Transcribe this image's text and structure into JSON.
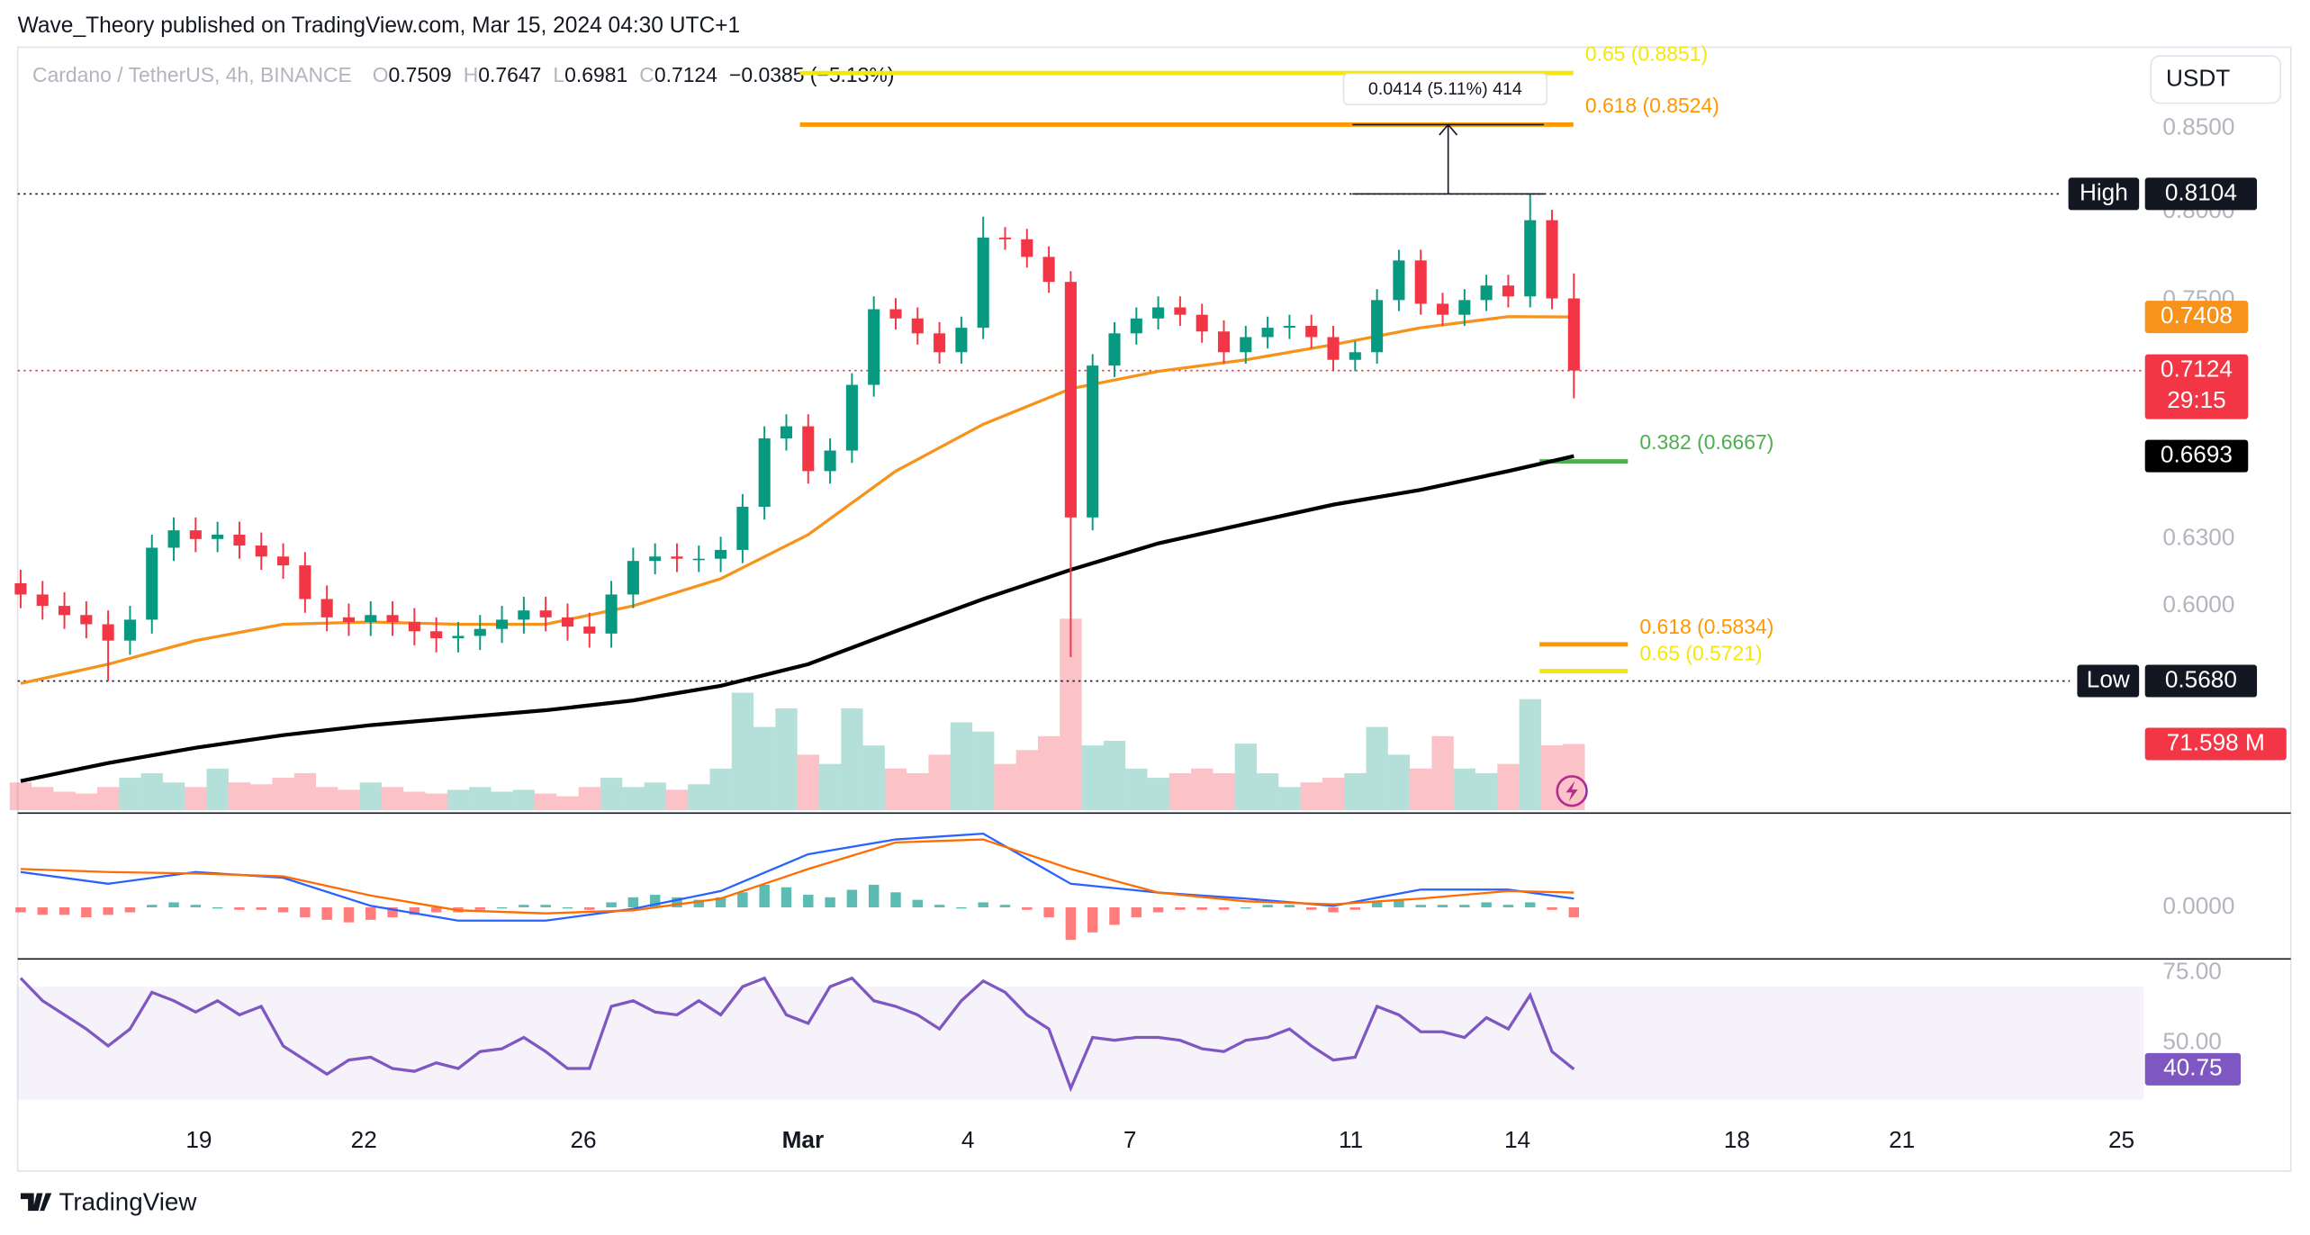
{
  "header": "Wave_Theory published on TradingView.com, Mar 15, 2024 04:30 UTC+1",
  "footer": "TradingView",
  "chart_data": {
    "type": "candlestick",
    "symbol": "Cardano / TetherUS, 4h, BINANCE",
    "quote": "USDT",
    "legend_ohlc": [
      {
        "label": "O",
        "value": 0.7509
      },
      {
        "label": "H",
        "value": 0.7647
      },
      {
        "label": "L",
        "value": 0.6981
      },
      {
        "label": "C",
        "value": 0.7124
      }
    ],
    "change": "−0.0385 (−5.13%)",
    "up_color": "#089981",
    "down_color": "#f23645",
    "open": [
      0.61,
      0.605,
      0.6,
      0.596,
      0.592,
      0.585,
      0.594,
      0.626,
      0.634,
      0.63,
      0.632,
      0.627,
      0.622,
      0.618,
      0.603,
      0.595,
      0.593,
      0.596,
      0.593,
      0.589,
      0.586,
      0.587,
      0.59,
      0.594,
      0.598,
      0.595,
      0.591,
      0.588,
      0.605,
      0.62,
      0.622,
      0.621,
      0.621,
      0.625,
      0.645,
      0.678,
      0.684,
      0.662,
      0.672,
      0.705,
      0.745,
      0.74,
      0.732,
      0.722,
      0.735,
      0.785,
      0.784,
      0.774,
      0.76,
      0.64,
      0.715,
      0.732,
      0.74,
      0.746,
      0.742,
      0.733,
      0.722,
      0.73,
      0.735,
      0.736,
      0.73,
      0.718,
      0.722,
      0.75,
      0.772,
      0.748,
      0.742,
      0.75,
      0.758,
      0.752,
      0.795,
      0.7509
    ],
    "high": [
      0.616,
      0.611,
      0.606,
      0.602,
      0.598,
      0.6,
      0.632,
      0.64,
      0.64,
      0.638,
      0.638,
      0.633,
      0.628,
      0.624,
      0.609,
      0.601,
      0.602,
      0.602,
      0.599,
      0.595,
      0.593,
      0.596,
      0.6,
      0.604,
      0.604,
      0.601,
      0.597,
      0.611,
      0.626,
      0.628,
      0.628,
      0.627,
      0.631,
      0.651,
      0.684,
      0.69,
      0.69,
      0.678,
      0.711,
      0.752,
      0.751,
      0.746,
      0.738,
      0.741,
      0.797,
      0.791,
      0.79,
      0.78,
      0.766,
      0.721,
      0.738,
      0.746,
      0.752,
      0.752,
      0.748,
      0.739,
      0.736,
      0.741,
      0.742,
      0.742,
      0.736,
      0.728,
      0.756,
      0.778,
      0.778,
      0.754,
      0.756,
      0.764,
      0.764,
      0.8104,
      0.801,
      0.7647
    ],
    "low": [
      0.599,
      0.594,
      0.59,
      0.586,
      0.568,
      0.579,
      0.588,
      0.62,
      0.624,
      0.624,
      0.621,
      0.616,
      0.612,
      0.597,
      0.589,
      0.587,
      0.587,
      0.587,
      0.583,
      0.58,
      0.58,
      0.581,
      0.584,
      0.588,
      0.589,
      0.585,
      0.582,
      0.582,
      0.599,
      0.614,
      0.615,
      0.615,
      0.615,
      0.619,
      0.639,
      0.672,
      0.656,
      0.656,
      0.666,
      0.699,
      0.734,
      0.726,
      0.716,
      0.716,
      0.729,
      0.778,
      0.768,
      0.754,
      0.578,
      0.634,
      0.709,
      0.726,
      0.734,
      0.736,
      0.727,
      0.716,
      0.716,
      0.724,
      0.729,
      0.724,
      0.712,
      0.712,
      0.716,
      0.744,
      0.742,
      0.736,
      0.736,
      0.744,
      0.746,
      0.746,
      0.745,
      0.6981
    ],
    "close": [
      0.605,
      0.6,
      0.596,
      0.592,
      0.585,
      0.594,
      0.626,
      0.634,
      0.63,
      0.632,
      0.627,
      0.622,
      0.618,
      0.603,
      0.595,
      0.593,
      0.596,
      0.593,
      0.589,
      0.586,
      0.587,
      0.59,
      0.594,
      0.598,
      0.595,
      0.591,
      0.588,
      0.605,
      0.62,
      0.622,
      0.621,
      0.621,
      0.625,
      0.645,
      0.678,
      0.684,
      0.662,
      0.672,
      0.705,
      0.745,
      0.74,
      0.732,
      0.722,
      0.735,
      0.785,
      0.784,
      0.774,
      0.76,
      0.64,
      0.715,
      0.732,
      0.74,
      0.746,
      0.742,
      0.733,
      0.722,
      0.73,
      0.735,
      0.736,
      0.73,
      0.718,
      0.722,
      0.75,
      0.772,
      0.748,
      0.742,
      0.75,
      0.758,
      0.752,
      0.795,
      0.7509,
      0.7124
    ],
    "countdown": "29:15",
    "log_scale": true,
    "grid": false,
    "ylim": [
      0.5158,
      0.902
    ],
    "yticks": [
      {
        "value": 0.85,
        "label": "0.8500"
      },
      {
        "value": 0.8,
        "label": "0.8000"
      },
      {
        "value": 0.75,
        "label": "0.7500"
      },
      {
        "value": 0.63,
        "label": "0.6300"
      },
      {
        "value": 0.6,
        "label": "0.6000"
      }
    ],
    "xticks": [
      "19",
      "22",
      "26",
      "Mar",
      "4",
      "7",
      "11",
      "14",
      "18",
      "21",
      "25"
    ],
    "moving_averages": [
      {
        "color": "#f7931a",
        "x": [
          0,
          4,
          8,
          12,
          16,
          20,
          24,
          28,
          32,
          36,
          40,
          44,
          48,
          52,
          56,
          60,
          64,
          68,
          71
        ],
        "values": [
          0.567,
          0.575,
          0.585,
          0.592,
          0.593,
          0.592,
          0.592,
          0.6,
          0.612,
          0.632,
          0.662,
          0.685,
          0.703,
          0.712,
          0.718,
          0.726,
          0.735,
          0.741,
          0.7408
        ]
      },
      {
        "color": "#000000",
        "x": [
          0,
          4,
          8,
          12,
          16,
          20,
          24,
          28,
          32,
          36,
          40,
          44,
          48,
          52,
          56,
          60,
          64,
          68,
          71
        ],
        "values": [
          0.528,
          0.535,
          0.541,
          0.546,
          0.55,
          0.553,
          0.556,
          0.56,
          0.566,
          0.575,
          0.589,
          0.603,
          0.616,
          0.628,
          0.637,
          0.646,
          0.653,
          0.662,
          0.6693
        ]
      }
    ],
    "high_line": {
      "label": "High",
      "value": 0.8104
    },
    "low_line": {
      "label": "Low",
      "value": 0.568,
      "value_label": "0.5680"
    },
    "fib_upper": [
      {
        "label": "0.65 (0.8851)",
        "price": 0.8851,
        "color": "#f5e70a"
      },
      {
        "label": "0.618 (0.8524)",
        "price": 0.8524,
        "color": "#ff9800"
      }
    ],
    "fib_lower": [
      {
        "label": "0.382 (0.6667)",
        "price": 0.6667,
        "color": "#4caf50"
      },
      {
        "label": "0.618 (0.5834)",
        "price": 0.5834,
        "color": "#ff9800"
      },
      {
        "label": "0.65 (0.5721)",
        "price": 0.5721,
        "color": "#f5e70a"
      }
    ],
    "measure": "0.0414 (5.11%) 414",
    "volume": {
      "values": [
        30,
        25,
        20,
        18,
        25,
        35,
        40,
        30,
        25,
        45,
        30,
        28,
        35,
        40,
        25,
        22,
        30,
        25,
        20,
        18,
        22,
        25,
        20,
        22,
        18,
        15,
        25,
        35,
        25,
        30,
        22,
        28,
        45,
        127,
        90,
        110,
        60,
        50,
        110,
        70,
        45,
        40,
        60,
        95,
        85,
        50,
        65,
        80,
        207,
        70,
        75,
        45,
        35,
        40,
        45,
        40,
        72,
        40,
        25,
        30,
        35,
        40,
        90,
        60,
        45,
        80,
        45,
        40,
        50,
        120,
        70,
        71.598
      ],
      "value_label": "71.598 M"
    },
    "macd": {
      "x": [
        0,
        4,
        8,
        12,
        16,
        20,
        24,
        28,
        32,
        36,
        40,
        44,
        48,
        52,
        56,
        60,
        64,
        68,
        71
      ],
      "macd": [
        0.0141,
        0.0094,
        0.0141,
        0.0118,
        0.0006,
        -0.0053,
        -0.0053,
        -0.0006,
        0.0065,
        0.0212,
        0.0271,
        0.0294,
        0.0094,
        0.0059,
        0.0035,
        0.0006,
        0.0071,
        0.0071,
        0.0035
      ],
      "signal": [
        0.0153,
        0.0141,
        0.0135,
        0.0124,
        0.0047,
        -0.0012,
        -0.0024,
        -0.0012,
        0.0035,
        0.0153,
        0.0259,
        0.0271,
        0.0153,
        0.0059,
        0.0024,
        0.0012,
        0.0035,
        0.0065,
        0.0059
      ],
      "histogram": [
        -0.002,
        -0.003,
        -0.003,
        -0.004,
        -0.003,
        -0.002,
        0.001,
        0.002,
        0.001,
        0.0,
        -0.001,
        -0.001,
        -0.002,
        -0.004,
        -0.005,
        -0.006,
        -0.005,
        -0.004,
        -0.003,
        -0.002,
        -0.002,
        -0.001,
        0.0,
        0.001,
        0.001,
        0.0,
        -0.001,
        0.002,
        0.004,
        0.005,
        0.004,
        0.003,
        0.004,
        0.006,
        0.009,
        0.008,
        0.005,
        0.004,
        0.007,
        0.009,
        0.006,
        0.003,
        0.001,
        0.0,
        0.002,
        0.001,
        -0.001,
        -0.004,
        -0.013,
        -0.01,
        -0.007,
        -0.004,
        -0.002,
        -0.001,
        -0.001,
        -0.001,
        0.0,
        0.001,
        0.001,
        -0.001,
        -0.002,
        -0.001,
        0.002,
        0.003,
        0.001,
        0.001,
        0.001,
        0.002,
        0.001,
        0.002,
        -0.001,
        -0.004
      ],
      "macd_color": "#2962ff",
      "signal_color": "#ff6d00",
      "up_color": "#26a69a",
      "down_color": "#ff5252",
      "ylim": [
        -0.0206,
        0.0376
      ],
      "yticks": [
        {
          "value": 0,
          "label": "0.0000"
        }
      ]
    },
    "rsi": {
      "values": [
        73,
        65,
        60,
        55,
        49,
        55,
        68,
        65,
        61,
        65,
        60,
        63,
        49,
        44,
        39,
        44,
        45,
        41,
        40,
        43,
        41,
        47,
        48,
        52,
        47,
        41,
        41,
        63,
        65,
        61,
        60,
        65,
        60,
        70,
        73,
        60,
        57,
        70,
        73,
        65,
        63,
        60,
        55,
        65,
        72,
        68,
        60,
        55,
        34,
        52,
        51,
        52,
        52,
        51,
        48,
        47,
        51,
        52,
        55,
        49,
        44,
        45,
        63,
        60,
        54,
        54,
        52,
        59,
        55,
        67,
        47,
        40.75
      ],
      "color": "#7e57c2",
      "ylim": [
        24.5,
        79.8
      ],
      "band": [
        30,
        70
      ],
      "yticks": [
        {
          "value": 75,
          "label": "75.00"
        },
        {
          "value": 50,
          "label": "50.00"
        }
      ]
    }
  }
}
